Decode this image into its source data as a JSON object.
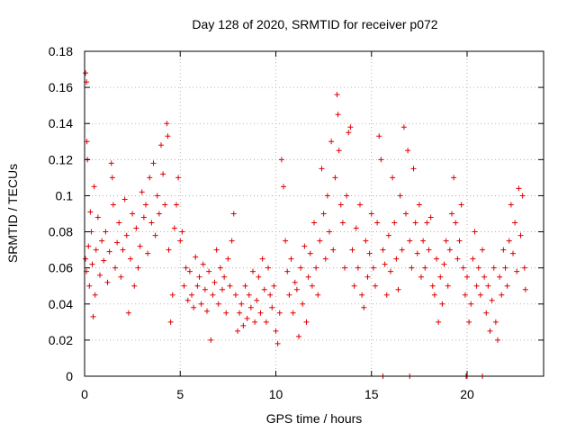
{
  "chart_data": {
    "type": "scatter",
    "title": "Day 128 of 2020, SRMTID for receiver p072",
    "xlabel": "GPS time / hours",
    "ylabel": "SRMTID / TECUs",
    "xlim": [
      0,
      24
    ],
    "ylim": [
      0,
      0.18
    ],
    "xticks": [
      0,
      5,
      10,
      15,
      20
    ],
    "xtick_labels": [
      "0",
      "5",
      "10",
      "15",
      "20"
    ],
    "yticks": [
      0,
      0.02,
      0.04,
      0.06,
      0.08,
      0.1,
      0.12,
      0.14,
      0.16,
      0.18
    ],
    "ytick_labels": [
      "0",
      "0.02",
      "0.04",
      "0.06",
      "0.08",
      "0.1",
      "0.12",
      "0.14",
      "0.16",
      "0.18"
    ],
    "grid": true,
    "marker": "+",
    "color": "#e00000",
    "series": [
      {
        "name": "SRMTID",
        "points": [
          [
            0.05,
            0.168
          ],
          [
            0.1,
            0.163
          ],
          [
            0.12,
            0.13
          ],
          [
            0.15,
            0.12
          ],
          [
            0.05,
            0.065
          ],
          [
            0.1,
            0.058
          ],
          [
            0.2,
            0.072
          ],
          [
            0.25,
            0.05
          ],
          [
            0.3,
            0.091
          ],
          [
            0.35,
            0.08
          ],
          [
            0.4,
            0.062
          ],
          [
            0.45,
            0.033
          ],
          [
            0.5,
            0.105
          ],
          [
            0.55,
            0.045
          ],
          [
            0.6,
            0.07
          ],
          [
            0.7,
            0.088
          ],
          [
            0.8,
            0.056
          ],
          [
            0.9,
            0.075
          ],
          [
            1.0,
            0.064
          ],
          [
            1.1,
            0.08
          ],
          [
            1.2,
            0.052
          ],
          [
            1.3,
            0.069
          ],
          [
            1.4,
            0.118
          ],
          [
            1.45,
            0.11
          ],
          [
            1.5,
            0.095
          ],
          [
            1.6,
            0.06
          ],
          [
            1.7,
            0.074
          ],
          [
            1.8,
            0.085
          ],
          [
            1.9,
            0.055
          ],
          [
            2.0,
            0.07
          ],
          [
            2.1,
            0.098
          ],
          [
            2.2,
            0.078
          ],
          [
            2.3,
            0.035
          ],
          [
            2.4,
            0.065
          ],
          [
            2.5,
            0.09
          ],
          [
            2.6,
            0.05
          ],
          [
            2.7,
            0.082
          ],
          [
            2.8,
            0.06
          ],
          [
            2.9,
            0.072
          ],
          [
            3.0,
            0.102
          ],
          [
            3.1,
            0.088
          ],
          [
            3.2,
            0.095
          ],
          [
            3.3,
            0.068
          ],
          [
            3.4,
            0.11
          ],
          [
            3.5,
            0.085
          ],
          [
            3.6,
            0.118
          ],
          [
            3.7,
            0.078
          ],
          [
            3.8,
            0.1
          ],
          [
            3.9,
            0.09
          ],
          [
            4.0,
            0.128
          ],
          [
            4.1,
            0.112
          ],
          [
            4.2,
            0.095
          ],
          [
            4.3,
            0.14
          ],
          [
            4.35,
            0.133
          ],
          [
            4.4,
            0.07
          ],
          [
            4.5,
            0.03
          ],
          [
            4.6,
            0.045
          ],
          [
            4.7,
            0.082
          ],
          [
            4.8,
            0.095
          ],
          [
            4.9,
            0.11
          ],
          [
            5.0,
            0.075
          ],
          [
            5.1,
            0.08
          ],
          [
            5.2,
            0.05
          ],
          [
            5.3,
            0.06
          ],
          [
            5.4,
            0.042
          ],
          [
            5.5,
            0.058
          ],
          [
            5.6,
            0.045
          ],
          [
            5.7,
            0.038
          ],
          [
            5.8,
            0.066
          ],
          [
            5.9,
            0.05
          ],
          [
            6.0,
            0.055
          ],
          [
            6.1,
            0.04
          ],
          [
            6.2,
            0.062
          ],
          [
            6.3,
            0.048
          ],
          [
            6.4,
            0.036
          ],
          [
            6.5,
            0.058
          ],
          [
            6.6,
            0.02
          ],
          [
            6.7,
            0.045
          ],
          [
            6.8,
            0.052
          ],
          [
            6.9,
            0.07
          ],
          [
            7.0,
            0.04
          ],
          [
            7.1,
            0.06
          ],
          [
            7.2,
            0.048
          ],
          [
            7.3,
            0.055
          ],
          [
            7.4,
            0.035
          ],
          [
            7.5,
            0.065
          ],
          [
            7.6,
            0.05
          ],
          [
            7.7,
            0.075
          ],
          [
            7.8,
            0.09
          ],
          [
            7.9,
            0.045
          ],
          [
            8.0,
            0.025
          ],
          [
            8.1,
            0.035
          ],
          [
            8.2,
            0.04
          ],
          [
            8.3,
            0.028
          ],
          [
            8.4,
            0.05
          ],
          [
            8.5,
            0.032
          ],
          [
            8.6,
            0.045
          ],
          [
            8.7,
            0.038
          ],
          [
            8.8,
            0.058
          ],
          [
            8.9,
            0.03
          ],
          [
            9.0,
            0.042
          ],
          [
            9.1,
            0.055
          ],
          [
            9.2,
            0.035
          ],
          [
            9.3,
            0.065
          ],
          [
            9.4,
            0.048
          ],
          [
            9.5,
            0.03
          ],
          [
            9.6,
            0.06
          ],
          [
            9.7,
            0.045
          ],
          [
            9.8,
            0.038
          ],
          [
            9.9,
            0.05
          ],
          [
            10.0,
            0.025
          ],
          [
            10.1,
            0.018
          ],
          [
            10.2,
            0.035
          ],
          [
            10.3,
            0.12
          ],
          [
            10.4,
            0.105
          ],
          [
            10.5,
            0.075
          ],
          [
            10.6,
            0.058
          ],
          [
            10.7,
            0.045
          ],
          [
            10.8,
            0.065
          ],
          [
            10.9,
            0.035
          ],
          [
            11.0,
            0.052
          ],
          [
            11.1,
            0.048
          ],
          [
            11.2,
            0.022
          ],
          [
            11.3,
            0.06
          ],
          [
            11.4,
            0.04
          ],
          [
            11.5,
            0.072
          ],
          [
            11.6,
            0.03
          ],
          [
            11.7,
            0.055
          ],
          [
            11.8,
            0.068
          ],
          [
            11.9,
            0.05
          ],
          [
            12.0,
            0.085
          ],
          [
            12.1,
            0.06
          ],
          [
            12.2,
            0.045
          ],
          [
            12.3,
            0.075
          ],
          [
            12.4,
            0.115
          ],
          [
            12.5,
            0.09
          ],
          [
            12.6,
            0.065
          ],
          [
            12.7,
            0.1
          ],
          [
            12.8,
            0.08
          ],
          [
            12.9,
            0.13
          ],
          [
            13.0,
            0.07
          ],
          [
            13.1,
            0.11
          ],
          [
            13.2,
            0.156
          ],
          [
            13.25,
            0.145
          ],
          [
            13.3,
            0.125
          ],
          [
            13.4,
            0.095
          ],
          [
            13.5,
            0.085
          ],
          [
            13.6,
            0.06
          ],
          [
            13.7,
            0.1
          ],
          [
            13.8,
            0.135
          ],
          [
            13.9,
            0.138
          ],
          [
            14.0,
            0.07
          ],
          [
            14.1,
            0.05
          ],
          [
            14.2,
            0.082
          ],
          [
            14.3,
            0.06
          ],
          [
            14.4,
            0.095
          ],
          [
            14.5,
            0.045
          ],
          [
            14.6,
            0.038
          ],
          [
            14.7,
            0.075
          ],
          [
            14.8,
            0.055
          ],
          [
            14.9,
            0.068
          ],
          [
            15.0,
            0.09
          ],
          [
            15.1,
            0.06
          ],
          [
            15.2,
            0.05
          ],
          [
            15.3,
            0.085
          ],
          [
            15.4,
            0.133
          ],
          [
            15.5,
            0.12
          ],
          [
            15.6,
            0.07
          ],
          [
            15.7,
            0.062
          ],
          [
            15.8,
            0.045
          ],
          [
            15.9,
            0.078
          ],
          [
            16.0,
            0.058
          ],
          [
            16.1,
            0.11
          ],
          [
            16.2,
            0.085
          ],
          [
            16.3,
            0.065
          ],
          [
            16.4,
            0.048
          ],
          [
            16.5,
            0.1
          ],
          [
            16.6,
            0.07
          ],
          [
            16.7,
            0.138
          ],
          [
            16.8,
            0.09
          ],
          [
            16.9,
            0.125
          ],
          [
            17.0,
            0.075
          ],
          [
            17.1,
            0.06
          ],
          [
            17.2,
            0.115
          ],
          [
            17.3,
            0.085
          ],
          [
            17.4,
            0.068
          ],
          [
            17.5,
            0.095
          ],
          [
            17.6,
            0.055
          ],
          [
            17.7,
            0.075
          ],
          [
            17.8,
            0.06
          ],
          [
            17.9,
            0.085
          ],
          [
            18.0,
            0.07
          ],
          [
            18.1,
            0.088
          ],
          [
            18.2,
            0.05
          ],
          [
            18.3,
            0.045
          ],
          [
            18.4,
            0.065
          ],
          [
            18.5,
            0.03
          ],
          [
            18.6,
            0.055
          ],
          [
            18.7,
            0.04
          ],
          [
            18.8,
            0.062
          ],
          [
            18.9,
            0.075
          ],
          [
            19.0,
            0.05
          ],
          [
            19.1,
            0.07
          ],
          [
            19.2,
            0.09
          ],
          [
            19.3,
            0.11
          ],
          [
            19.4,
            0.085
          ],
          [
            19.5,
            0.065
          ],
          [
            19.6,
            0.075
          ],
          [
            19.7,
            0.095
          ],
          [
            19.8,
            0.06
          ],
          [
            19.9,
            0.045
          ],
          [
            20.0,
            0.055
          ],
          [
            20.1,
            0.03
          ],
          [
            20.2,
            0.04
          ],
          [
            20.3,
            0.065
          ],
          [
            20.4,
            0.08
          ],
          [
            20.5,
            0.05
          ],
          [
            20.6,
            0.06
          ],
          [
            20.7,
            0.045
          ],
          [
            20.8,
            0.07
          ],
          [
            20.9,
            0.055
          ],
          [
            21.0,
            0.035
          ],
          [
            21.1,
            0.05
          ],
          [
            21.2,
            0.025
          ],
          [
            21.3,
            0.042
          ],
          [
            21.4,
            0.06
          ],
          [
            21.5,
            0.03
          ],
          [
            21.6,
            0.02
          ],
          [
            21.7,
            0.055
          ],
          [
            21.8,
            0.045
          ],
          [
            21.9,
            0.07
          ],
          [
            22.0,
            0.06
          ],
          [
            22.1,
            0.05
          ],
          [
            22.2,
            0.075
          ],
          [
            22.3,
            0.095
          ],
          [
            22.4,
            0.068
          ],
          [
            22.5,
            0.085
          ],
          [
            22.6,
            0.058
          ],
          [
            22.7,
            0.104
          ],
          [
            22.8,
            0.078
          ],
          [
            22.9,
            0.1
          ],
          [
            23.0,
            0.06
          ],
          [
            23.05,
            0.048
          ],
          [
            15.6,
            0
          ],
          [
            17.0,
            0
          ],
          [
            19.95,
            0
          ],
          [
            20.0,
            0
          ],
          [
            20.8,
            0
          ]
        ]
      }
    ]
  }
}
